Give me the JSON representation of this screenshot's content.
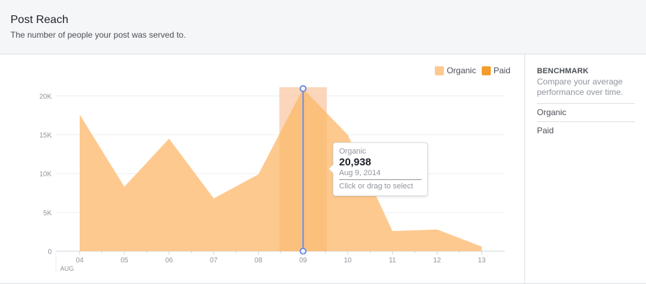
{
  "header": {
    "title": "Post Reach",
    "subtitle": "The number of people your post was served to."
  },
  "legend": {
    "organic_label": "Organic",
    "paid_label": "Paid",
    "organic_color": "#fec98f",
    "paid_color": "#f39c2d"
  },
  "benchmark": {
    "title": "BENCHMARK",
    "description": "Compare your average performance over time.",
    "items": [
      "Organic",
      "Paid"
    ]
  },
  "tooltip": {
    "series": "Organic",
    "value": "20,938",
    "date": "Aug 9, 2014",
    "hint": "Click or drag to select"
  },
  "chart_data": {
    "type": "area",
    "x": [
      "04",
      "05",
      "06",
      "07",
      "08",
      "09",
      "10",
      "11",
      "12",
      "13"
    ],
    "x_sublabel": "AUG",
    "series": [
      {
        "name": "Organic",
        "values": [
          17600,
          8300,
          14500,
          6800,
          9900,
          20938,
          15000,
          2600,
          2800,
          600
        ]
      },
      {
        "name": "Paid",
        "values": [
          0,
          0,
          0,
          0,
          0,
          0,
          0,
          0,
          0,
          0
        ]
      }
    ],
    "y_ticks": [
      0,
      5000,
      10000,
      15000,
      20000
    ],
    "y_tick_labels": [
      "0",
      "5K",
      "10K",
      "15K",
      "20K"
    ],
    "ylim": [
      0,
      20938
    ],
    "highlight_index": 5,
    "grid": true,
    "legend_position": "top-right"
  }
}
